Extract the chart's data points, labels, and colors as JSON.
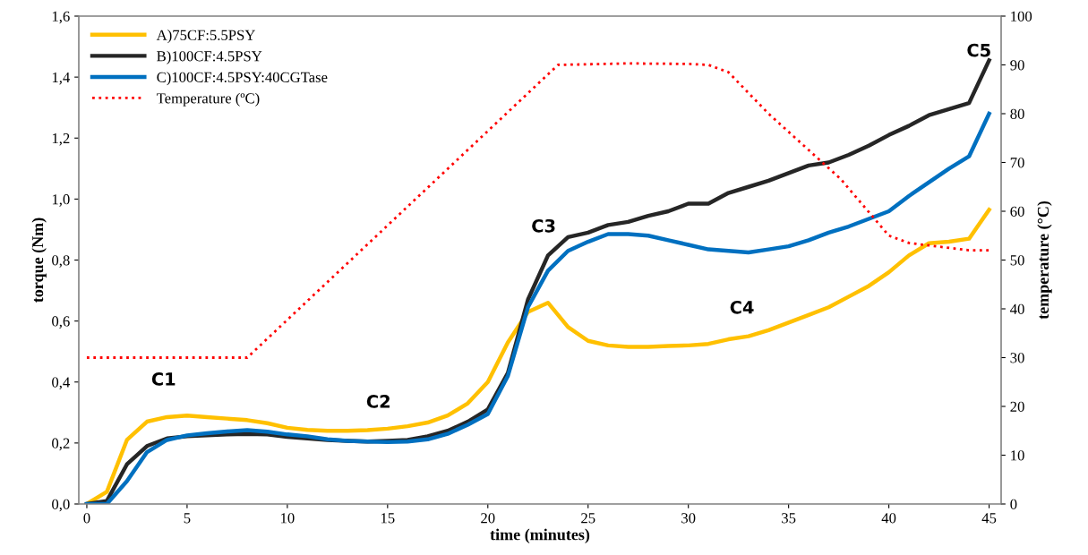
{
  "chart_data": {
    "type": "line",
    "xlabel": "time (minutes)",
    "ylabel": "torque (Nm)",
    "y2label": "temperature (°C)",
    "x": [
      0,
      1,
      2,
      3,
      4,
      5,
      6,
      7,
      8,
      9,
      10,
      11,
      12,
      13,
      14,
      15,
      16,
      17,
      18,
      19,
      20,
      21,
      22,
      23,
      24,
      25,
      26,
      27,
      28,
      29,
      30,
      31,
      32,
      33,
      34,
      35,
      36,
      37,
      38,
      39,
      40,
      41,
      42,
      43,
      44,
      45
    ],
    "series": [
      {
        "name": "A)75CF:5.5PSY",
        "color": "#ffc000",
        "values": [
          0,
          0.04,
          0.21,
          0.27,
          0.285,
          0.29,
          0.285,
          0.28,
          0.275,
          0.265,
          0.25,
          0.243,
          0.24,
          0.24,
          0.242,
          0.247,
          0.255,
          0.267,
          0.29,
          0.33,
          0.4,
          0.53,
          0.63,
          0.66,
          0.58,
          0.535,
          0.52,
          0.515,
          0.515,
          0.518,
          0.52,
          0.525,
          0.54,
          0.55,
          0.57,
          0.595,
          0.62,
          0.645,
          0.68,
          0.715,
          0.76,
          0.815,
          0.855,
          0.86,
          0.87,
          0.965
        ]
      },
      {
        "name": "B)100CF:4.5PSY",
        "color": "#262626",
        "values": [
          0,
          0.01,
          0.13,
          0.19,
          0.215,
          0.222,
          0.225,
          0.228,
          0.23,
          0.228,
          0.22,
          0.215,
          0.21,
          0.207,
          0.205,
          0.207,
          0.21,
          0.222,
          0.24,
          0.27,
          0.31,
          0.43,
          0.67,
          0.815,
          0.875,
          0.89,
          0.915,
          0.925,
          0.945,
          0.96,
          0.985,
          0.985,
          1.02,
          1.04,
          1.06,
          1.085,
          1.11,
          1.12,
          1.145,
          1.175,
          1.21,
          1.24,
          1.275,
          1.295,
          1.315,
          1.455
        ]
      },
      {
        "name": "C)100CF:4.5PSY:40CGTase",
        "color": "#0070c0",
        "values": [
          0,
          0,
          0.075,
          0.17,
          0.21,
          0.225,
          0.232,
          0.238,
          0.242,
          0.237,
          0.228,
          0.222,
          0.212,
          0.207,
          0.205,
          0.203,
          0.205,
          0.212,
          0.23,
          0.26,
          0.295,
          0.42,
          0.645,
          0.765,
          0.83,
          0.86,
          0.885,
          0.885,
          0.88,
          0.865,
          0.85,
          0.835,
          0.83,
          0.825,
          0.835,
          0.845,
          0.865,
          0.89,
          0.91,
          0.935,
          0.96,
          1.01,
          1.055,
          1.1,
          1.14,
          1.28
        ]
      },
      {
        "name": "Temperature (ºC)",
        "color": "#ff0000",
        "axis": "y2",
        "line_style": "dotted",
        "x": [
          0,
          8,
          23.5,
          27,
          30,
          31,
          32,
          34,
          37.6,
          40,
          41,
          42,
          44,
          45
        ],
        "values": [
          30,
          30,
          90,
          90.3,
          90.2,
          90,
          88.5,
          80,
          66.6,
          55,
          53.5,
          53,
          52,
          52
        ]
      }
    ],
    "annotations": [
      "C1",
      "C2",
      "C3",
      "C4",
      "C5"
    ],
    "xlim": [
      -0.4,
      45.6
    ],
    "xticks": [
      0,
      5,
      10,
      15,
      20,
      25,
      30,
      35,
      40,
      45
    ],
    "ylim": [
      0,
      1.6
    ],
    "yticks": [
      {
        "value": 0,
        "label": "0,0"
      },
      {
        "value": 0.2,
        "label": "0,2"
      },
      {
        "value": 0.4,
        "label": "0,4"
      },
      {
        "value": 0.6,
        "label": "0,6"
      },
      {
        "value": 0.8,
        "label": "0,8"
      },
      {
        "value": 1.0,
        "label": "1,0"
      },
      {
        "value": 1.2,
        "label": "1,2"
      },
      {
        "value": 1.4,
        "label": "1,4"
      },
      {
        "value": 1.6,
        "label": "1,6"
      }
    ],
    "y2lim": [
      0,
      100
    ],
    "y2ticks": [
      0,
      10,
      20,
      30,
      40,
      50,
      60,
      70,
      80,
      90,
      100
    ],
    "legend": "top left",
    "grid": false,
    "marker": "none",
    "line_style": "solid"
  }
}
